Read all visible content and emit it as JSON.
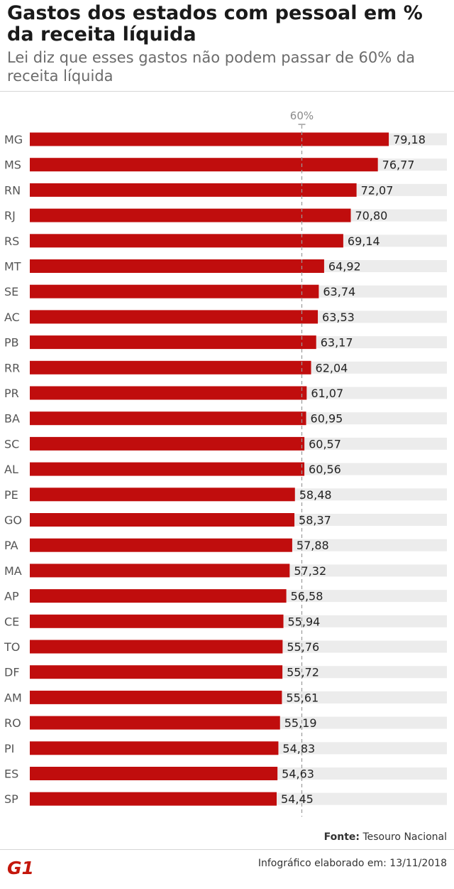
{
  "header": {
    "title": "Gastos dos estados com pessoal em % da receita líquida",
    "subtitle": "Lei diz que esses gastos não podem passar de 60% da receita líquida"
  },
  "chart_data": {
    "type": "bar",
    "orientation": "horizontal",
    "categories": [
      "MG",
      "MS",
      "RN",
      "RJ",
      "RS",
      "MT",
      "SE",
      "AC",
      "PB",
      "RR",
      "PR",
      "BA",
      "SC",
      "AL",
      "PE",
      "GO",
      "PA",
      "MA",
      "AP",
      "CE",
      "TO",
      "DF",
      "AM",
      "RO",
      "PI",
      "ES",
      "SP"
    ],
    "values": [
      79.18,
      76.77,
      72.07,
      70.8,
      69.14,
      64.92,
      63.74,
      63.53,
      63.17,
      62.04,
      61.07,
      60.95,
      60.57,
      60.56,
      58.48,
      58.37,
      57.88,
      57.32,
      56.58,
      55.94,
      55.76,
      55.72,
      55.61,
      55.19,
      54.83,
      54.63,
      54.45
    ],
    "value_labels": [
      "79,18",
      "76,77",
      "72,07",
      "70,80",
      "69,14",
      "64,92",
      "63,74",
      "63,53",
      "63,17",
      "62,04",
      "61,07",
      "60,95",
      "60,57",
      "60,56",
      "58,48",
      "58,37",
      "57,88",
      "57,32",
      "56,58",
      "55,94",
      "55,76",
      "55,72",
      "55,61",
      "55,19",
      "54,83",
      "54,63",
      "54,45"
    ],
    "xlim": [
      0,
      92
    ],
    "reference_line": {
      "value": 60,
      "label": "60%"
    },
    "bar_color": "#c00d0d",
    "track_color": "#ececec",
    "reference_color": "#9a9a9a",
    "grid": false,
    "legend": "none"
  },
  "footer": {
    "source_label": "Fonte:",
    "source_value": "Tesouro Nacional",
    "logo_text": "G1",
    "logo_color": "#c4170c",
    "credit": "Infográfico elaborado em: 13/11/2018"
  }
}
